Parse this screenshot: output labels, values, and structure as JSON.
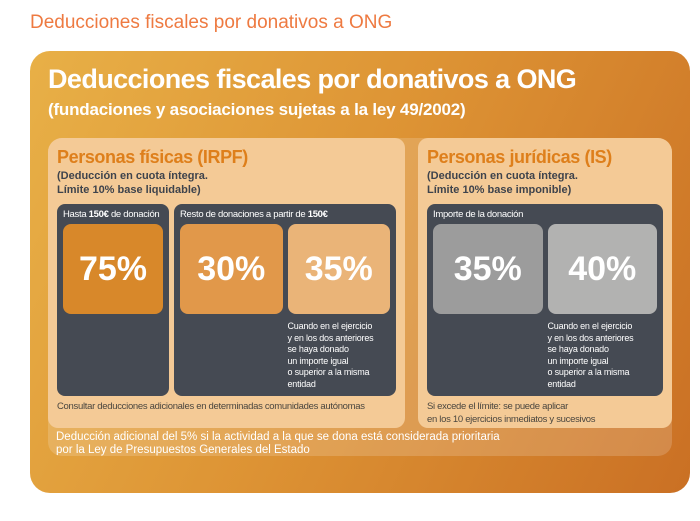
{
  "page_title": "Deducciones fiscales por donativos a ONG",
  "board": {
    "title": "Deducciones fiscales por donativos a ONG",
    "subtitle": "(fundaciones y asociaciones sujetas a la ley 49/2002)",
    "footnote": "Deducción adicional del 5% si la actividad a la que se dona está considerada prioritaria\npor la Ley de Presupuestos Generales del Estado"
  },
  "personas_fisicas": {
    "title": "Personas físicas (IRPF)",
    "subtitle": "(Deducción en cuota íntegra.\nLímite 10% base liquidable)",
    "box_hasta": {
      "label_pre": "Hasta ",
      "label_amount": "150€",
      "label_post": " de donación",
      "rate": "75%"
    },
    "box_resto": {
      "label_pre": "Resto de donaciones a partir de ",
      "label_amount": "150€",
      "label_post": "",
      "rate_general": "30%",
      "rate_recurrente": "35%",
      "condition": "Cuando en el ejercicio\ny en los dos anteriores\nse haya donado\nun importe igual\no superior a la misma\nentidad"
    },
    "footer": "Consultar deducciones adicionales en determinadas comunidades autónomas"
  },
  "personas_juridicas": {
    "title": "Personas jurídicas (IS)",
    "subtitle": "(Deducción en cuota íntegra.\nLímite 10% base imponible)",
    "box_importe": {
      "label": "Importe de la donación",
      "rate_general": "35%",
      "rate_recurrente": "40%",
      "condition": "Cuando en el ejercicio\ny en los dos anteriores\nse haya donado\nun importe igual\no superior a la misma\nentidad"
    },
    "footer": "Si excede el límite: se puede aplicar\nen los 10 ejercicios inmediatos y sucesivos"
  },
  "colors": {
    "page_title": "#ee7a41",
    "board_gradient_start": "#e8b047",
    "board_gradient_end": "#ca7024",
    "panel_bg": "#f4ca96",
    "panel_title": "#de7f1b",
    "dark_box": "#454a53",
    "dark_text": "#3e434c",
    "rate_75_bg": "#d8882a",
    "rate_30_bg": "#e1984a",
    "rate_35_bg": "#eab478",
    "rate_35_is_bg": "#9c9c9c",
    "rate_40_bg": "#b2b2b1"
  }
}
